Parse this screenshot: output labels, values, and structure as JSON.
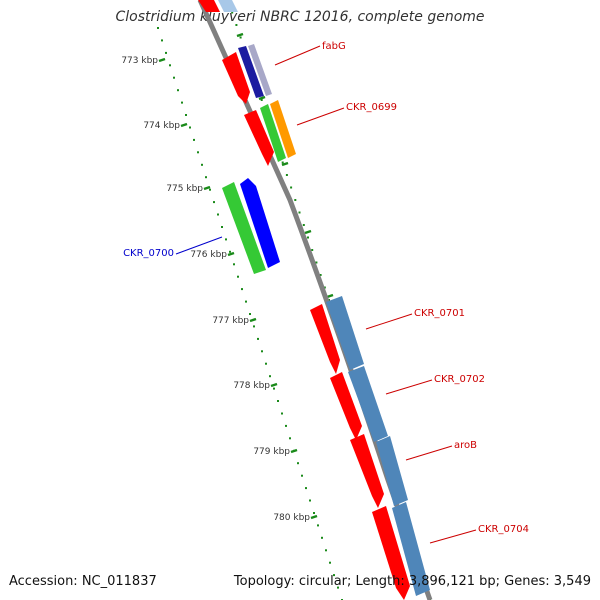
{
  "title": "Clostridium kluyveri NBRC 12016, complete genome",
  "footer": {
    "accession": "Accession: NC_011837",
    "summary": "Topology: circular; Length: 3,896,121 bp; Genes: 3,549"
  },
  "colors": {
    "backbone": "#808080",
    "tick": "#1a8a1a",
    "red": "#ff0000",
    "steelblue": "#4f86b9",
    "lightblue": "#a8c8e8",
    "navy": "#1c1ca0",
    "green": "#35c935",
    "blue": "#0000ff",
    "orange": "#ff9900",
    "label_red": "#cc0000",
    "label_blue": "#0000cc"
  },
  "ruler": {
    "unit": "kbp",
    "labels": [
      "773 kbp",
      "774 kbp",
      "775 kbp",
      "776 kbp",
      "777 kbp",
      "778 kbp",
      "779 kbp",
      "780 kbp"
    ]
  },
  "genes": [
    {
      "label": "fabG",
      "color_key": "label_red"
    },
    {
      "label": "CKR_0699",
      "color_key": "label_red"
    },
    {
      "label": "CKR_0700",
      "color_key": "label_blue"
    },
    {
      "label": "CKR_0701",
      "color_key": "label_red"
    },
    {
      "label": "CKR_0702",
      "color_key": "label_red"
    },
    {
      "label": "aroB",
      "color_key": "label_red"
    },
    {
      "label": "CKR_0704",
      "color_key": "label_red"
    }
  ]
}
